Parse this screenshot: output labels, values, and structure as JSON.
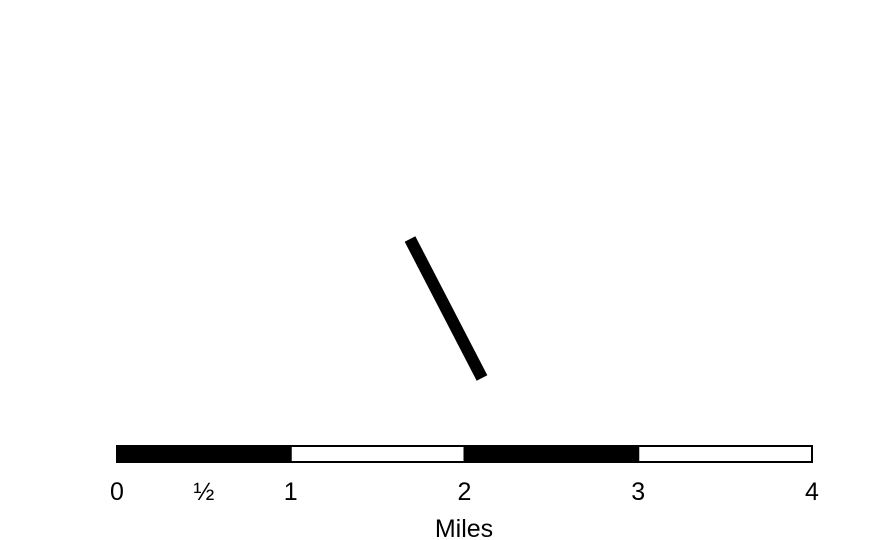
{
  "map": {
    "feature": {
      "name": "road-segment",
      "color": "#000000"
    },
    "scale_bar": {
      "units": "Miles",
      "segments": [
        {
          "from": 0,
          "to": 1,
          "fill": "#000000"
        },
        {
          "from": 1,
          "to": 2,
          "fill": "#ffffff"
        },
        {
          "from": 2,
          "to": 3,
          "fill": "#000000"
        },
        {
          "from": 3,
          "to": 4,
          "fill": "#ffffff"
        }
      ],
      "ticks": [
        {
          "value": 0,
          "label": "0"
        },
        {
          "value": 0.5,
          "label": "½"
        },
        {
          "value": 1,
          "label": "1"
        },
        {
          "value": 2,
          "label": "2"
        },
        {
          "value": 3,
          "label": "3"
        },
        {
          "value": 4,
          "label": "4"
        }
      ]
    }
  }
}
